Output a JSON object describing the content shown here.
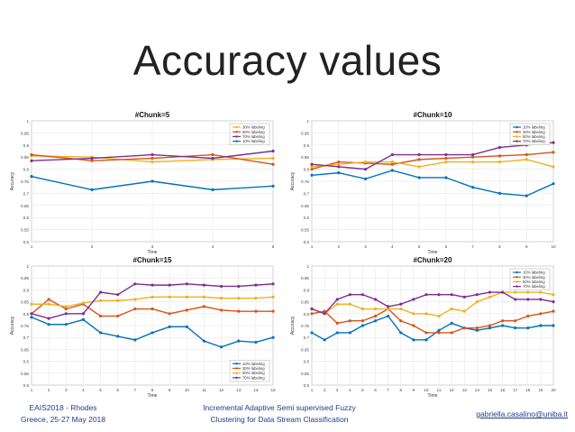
{
  "slide": {
    "title": "Accuracy values"
  },
  "footer": {
    "left_line1": "EAIS2018 - Rhodes",
    "left_line2": "Greece, 25-27 May 2018",
    "center_line1": "Incremental Adaptive Semi supervised Fuzzy",
    "center_line2": "Clustering for Data Stream Classification",
    "right": "gabriella.casalino@uniba.it"
  },
  "chart_data": [
    {
      "type": "line",
      "title": "#Chunk=5",
      "xlabel": "Time",
      "ylabel": "Accuracy",
      "x": [
        1,
        2,
        3,
        4,
        5
      ],
      "xlim": [
        1,
        5
      ],
      "ylim": [
        0.5,
        1
      ],
      "yticks": [
        0.5,
        0.55,
        0.6,
        0.65,
        0.7,
        0.75,
        0.8,
        0.85,
        0.9,
        0.95,
        1
      ],
      "legend_position": "top-right",
      "series": [
        {
          "name": "30% labeling",
          "color": "#edb120",
          "values": [
            0.855,
            0.85,
            0.83,
            0.84,
            0.845
          ]
        },
        {
          "name": "50% labeling",
          "color": "#d95319",
          "values": [
            0.86,
            0.835,
            0.845,
            0.86,
            0.82
          ]
        },
        {
          "name": "70% labeling",
          "color": "#7e2f8e",
          "values": [
            0.835,
            0.845,
            0.86,
            0.845,
            0.875
          ]
        },
        {
          "name": "10% labeling",
          "color": "#0072bd",
          "values": [
            0.77,
            0.715,
            0.75,
            0.715,
            0.73
          ]
        }
      ]
    },
    {
      "type": "line",
      "title": "#Chunk=10",
      "xlabel": "Time",
      "ylabel": "Accuracy",
      "x": [
        1,
        2,
        3,
        4,
        5,
        6,
        7,
        8,
        9,
        10
      ],
      "xlim": [
        1,
        10
      ],
      "ylim": [
        0.5,
        1
      ],
      "yticks": [
        0.5,
        0.55,
        0.6,
        0.65,
        0.7,
        0.75,
        0.8,
        0.85,
        0.9,
        0.95,
        1
      ],
      "legend_position": "top-right",
      "series": [
        {
          "name": "10% labeling",
          "color": "#0072bd",
          "values": [
            0.775,
            0.785,
            0.76,
            0.795,
            0.765,
            0.765,
            0.725,
            0.7,
            0.69,
            0.74
          ]
        },
        {
          "name": "30% labeling",
          "color": "#d95319",
          "values": [
            0.8,
            0.83,
            0.825,
            0.82,
            0.84,
            0.845,
            0.85,
            0.855,
            0.86,
            0.87
          ]
        },
        {
          "name": "50% labeling",
          "color": "#edb120",
          "values": [
            0.81,
            0.82,
            0.83,
            0.83,
            0.81,
            0.83,
            0.83,
            0.83,
            0.84,
            0.81
          ]
        },
        {
          "name": "70% labeling",
          "color": "#7e2f8e",
          "values": [
            0.82,
            0.81,
            0.8,
            0.86,
            0.86,
            0.86,
            0.86,
            0.89,
            0.9,
            0.91
          ]
        }
      ]
    },
    {
      "type": "line",
      "title": "#Chunk=15",
      "xlabel": "Time",
      "ylabel": "Accuracy",
      "x": [
        1,
        2,
        3,
        4,
        5,
        6,
        7,
        8,
        9,
        10,
        11,
        12,
        13,
        14,
        15
      ],
      "xlim": [
        1,
        15
      ],
      "ylim": [
        0.5,
        1
      ],
      "yticks": [
        0.5,
        0.55,
        0.6,
        0.65,
        0.7,
        0.75,
        0.8,
        0.85,
        0.9,
        0.95,
        1
      ],
      "legend_position": "bottom-right",
      "series": [
        {
          "name": "10% labeling",
          "color": "#0072bd",
          "values": [
            0.785,
            0.755,
            0.755,
            0.775,
            0.72,
            0.705,
            0.69,
            0.72,
            0.745,
            0.745,
            0.685,
            0.66,
            0.685,
            0.68,
            0.7
          ]
        },
        {
          "name": "30% labeling",
          "color": "#d95319",
          "values": [
            0.8,
            0.86,
            0.82,
            0.84,
            0.79,
            0.79,
            0.82,
            0.82,
            0.8,
            0.815,
            0.83,
            0.815,
            0.81,
            0.81,
            0.81
          ]
        },
        {
          "name": "50% labeling",
          "color": "#edb120",
          "values": [
            0.84,
            0.84,
            0.83,
            0.845,
            0.855,
            0.855,
            0.86,
            0.87,
            0.87,
            0.87,
            0.87,
            0.865,
            0.865,
            0.865,
            0.87
          ]
        },
        {
          "name": "70% labeling",
          "color": "#7e2f8e",
          "values": [
            0.8,
            0.78,
            0.8,
            0.8,
            0.89,
            0.88,
            0.925,
            0.92,
            0.92,
            0.925,
            0.92,
            0.915,
            0.915,
            0.92,
            0.925
          ]
        }
      ]
    },
    {
      "type": "line",
      "title": "#Chunk=20",
      "xlabel": "Time",
      "ylabel": "Accuracy",
      "x": [
        1,
        2,
        3,
        4,
        5,
        6,
        7,
        8,
        9,
        10,
        11,
        12,
        13,
        14,
        15,
        16,
        17,
        18,
        19,
        20
      ],
      "xlim": [
        1,
        20
      ],
      "ylim": [
        0.5,
        1
      ],
      "yticks": [
        0.5,
        0.55,
        0.6,
        0.65,
        0.7,
        0.75,
        0.8,
        0.85,
        0.9,
        0.95,
        1
      ],
      "legend_position": "top-right",
      "series": [
        {
          "name": "10% labeling",
          "color": "#0072bd",
          "values": [
            0.72,
            0.69,
            0.72,
            0.72,
            0.75,
            0.77,
            0.79,
            0.72,
            0.69,
            0.69,
            0.73,
            0.76,
            0.74,
            0.73,
            0.74,
            0.75,
            0.74,
            0.74,
            0.75,
            0.75
          ]
        },
        {
          "name": "30% labeling",
          "color": "#d95319",
          "values": [
            0.8,
            0.81,
            0.76,
            0.77,
            0.77,
            0.79,
            0.82,
            0.77,
            0.75,
            0.72,
            0.72,
            0.72,
            0.74,
            0.74,
            0.75,
            0.77,
            0.77,
            0.79,
            0.8,
            0.81
          ]
        },
        {
          "name": "50% labeling",
          "color": "#edb120",
          "values": [
            0.82,
            0.8,
            0.84,
            0.84,
            0.82,
            0.82,
            0.82,
            0.82,
            0.8,
            0.8,
            0.79,
            0.82,
            0.81,
            0.85,
            0.87,
            0.89,
            0.89,
            0.89,
            0.89,
            0.88
          ]
        },
        {
          "name": "70% labeling",
          "color": "#7e2f8e",
          "values": [
            0.82,
            0.8,
            0.86,
            0.88,
            0.88,
            0.86,
            0.83,
            0.84,
            0.86,
            0.88,
            0.88,
            0.88,
            0.87,
            0.88,
            0.89,
            0.89,
            0.86,
            0.86,
            0.86,
            0.85
          ]
        }
      ]
    }
  ]
}
